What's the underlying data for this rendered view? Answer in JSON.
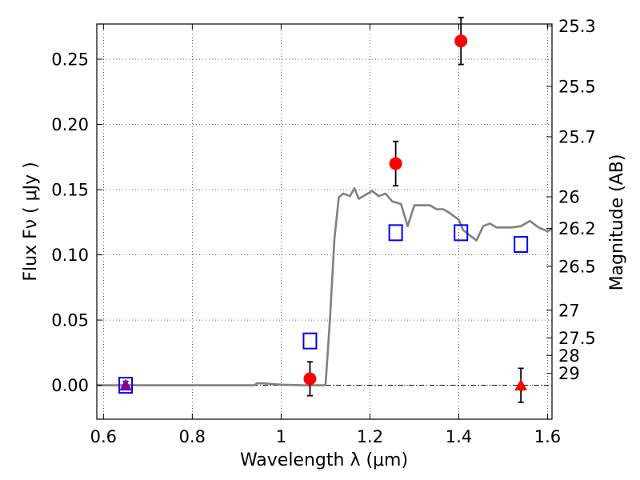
{
  "chart_data": {
    "type": "scatter",
    "xlabel": "Wavelength  λ (μm)",
    "ylabel": "Flux  Fν  ( μJy )",
    "ylabel_right": "Magnitude (AB)",
    "xlim": [
      0.585,
      1.61
    ],
    "ylim": [
      -0.026,
      0.277
    ],
    "x_ticks": [
      {
        "v": 0.6,
        "label": "0.6"
      },
      {
        "v": 0.8,
        "label": "0.8"
      },
      {
        "v": 1.0,
        "label": "1"
      },
      {
        "v": 1.2,
        "label": "1.2"
      },
      {
        "v": 1.4,
        "label": "1.4"
      },
      {
        "v": 1.6,
        "label": "1.6"
      }
    ],
    "y_ticks": [
      {
        "v": 0.0,
        "label": "0.00"
      },
      {
        "v": 0.05,
        "label": "0.05"
      },
      {
        "v": 0.1,
        "label": "0.10"
      },
      {
        "v": 0.15,
        "label": "0.15"
      },
      {
        "v": 0.2,
        "label": "0.20"
      },
      {
        "v": 0.25,
        "label": "0.25"
      }
    ],
    "mag_ticks": [
      {
        "v": 25.3,
        "label": "25.3"
      },
      {
        "v": 25.5,
        "label": "25.5"
      },
      {
        "v": 25.7,
        "label": "25.7"
      },
      {
        "v": 26.0,
        "label": "26"
      },
      {
        "v": 26.2,
        "label": "26.2"
      },
      {
        "v": 26.5,
        "label": "26.5"
      },
      {
        "v": 27.0,
        "label": "27"
      },
      {
        "v": 27.5,
        "label": "27.5"
      },
      {
        "v": 28.0,
        "label": "28"
      },
      {
        "v": 29.0,
        "label": "29"
      }
    ],
    "grid": true,
    "colors": {
      "model": "#808080",
      "observed": "#ff0000",
      "model_points": "#0000ff",
      "upper_limit_marker": "#8b008b"
    },
    "series": [
      {
        "kind": "line",
        "x": [
          0.585,
          0.94,
          0.945,
          0.96,
          0.98,
          1.0,
          1.05,
          1.1,
          1.11,
          1.12,
          1.13,
          1.14,
          1.155,
          1.165,
          1.175,
          1.19,
          1.205,
          1.22,
          1.235,
          1.25,
          1.27,
          1.285,
          1.3,
          1.315,
          1.335,
          1.35,
          1.365,
          1.38,
          1.4,
          1.41,
          1.425,
          1.44,
          1.455,
          1.47,
          1.485,
          1.5,
          1.52,
          1.54,
          1.56,
          1.58,
          1.6,
          1.61
        ],
        "y": [
          0.0,
          0.0,
          0.0015,
          0.0015,
          0.001,
          0.0005,
          0.0,
          0.0,
          0.05,
          0.112,
          0.144,
          0.147,
          0.145,
          0.151,
          0.143,
          0.146,
          0.149,
          0.145,
          0.147,
          0.141,
          0.139,
          0.122,
          0.138,
          0.138,
          0.138,
          0.135,
          0.135,
          0.132,
          0.127,
          0.119,
          0.115,
          0.111,
          0.122,
          0.124,
          0.121,
          0.121,
          0.121,
          0.122,
          0.126,
          0.121,
          0.118,
          0.12
        ]
      },
      {
        "kind": "points",
        "marker": "square",
        "x": [
          0.65,
          1.065,
          1.258,
          1.405,
          1.54
        ],
        "y": [
          0.0,
          0.034,
          0.117,
          0.117,
          0.108
        ]
      },
      {
        "kind": "points",
        "marker": "circle",
        "x": [
          1.065,
          1.258,
          1.405
        ],
        "y": [
          0.005,
          0.17,
          0.264
        ],
        "err": [
          0.013,
          0.017,
          0.018
        ]
      },
      {
        "kind": "points",
        "marker": "triangle",
        "x": [
          0.65,
          1.54
        ],
        "y": [
          0.0,
          0.0
        ],
        "err": [
          0.003,
          0.013
        ]
      }
    ]
  }
}
